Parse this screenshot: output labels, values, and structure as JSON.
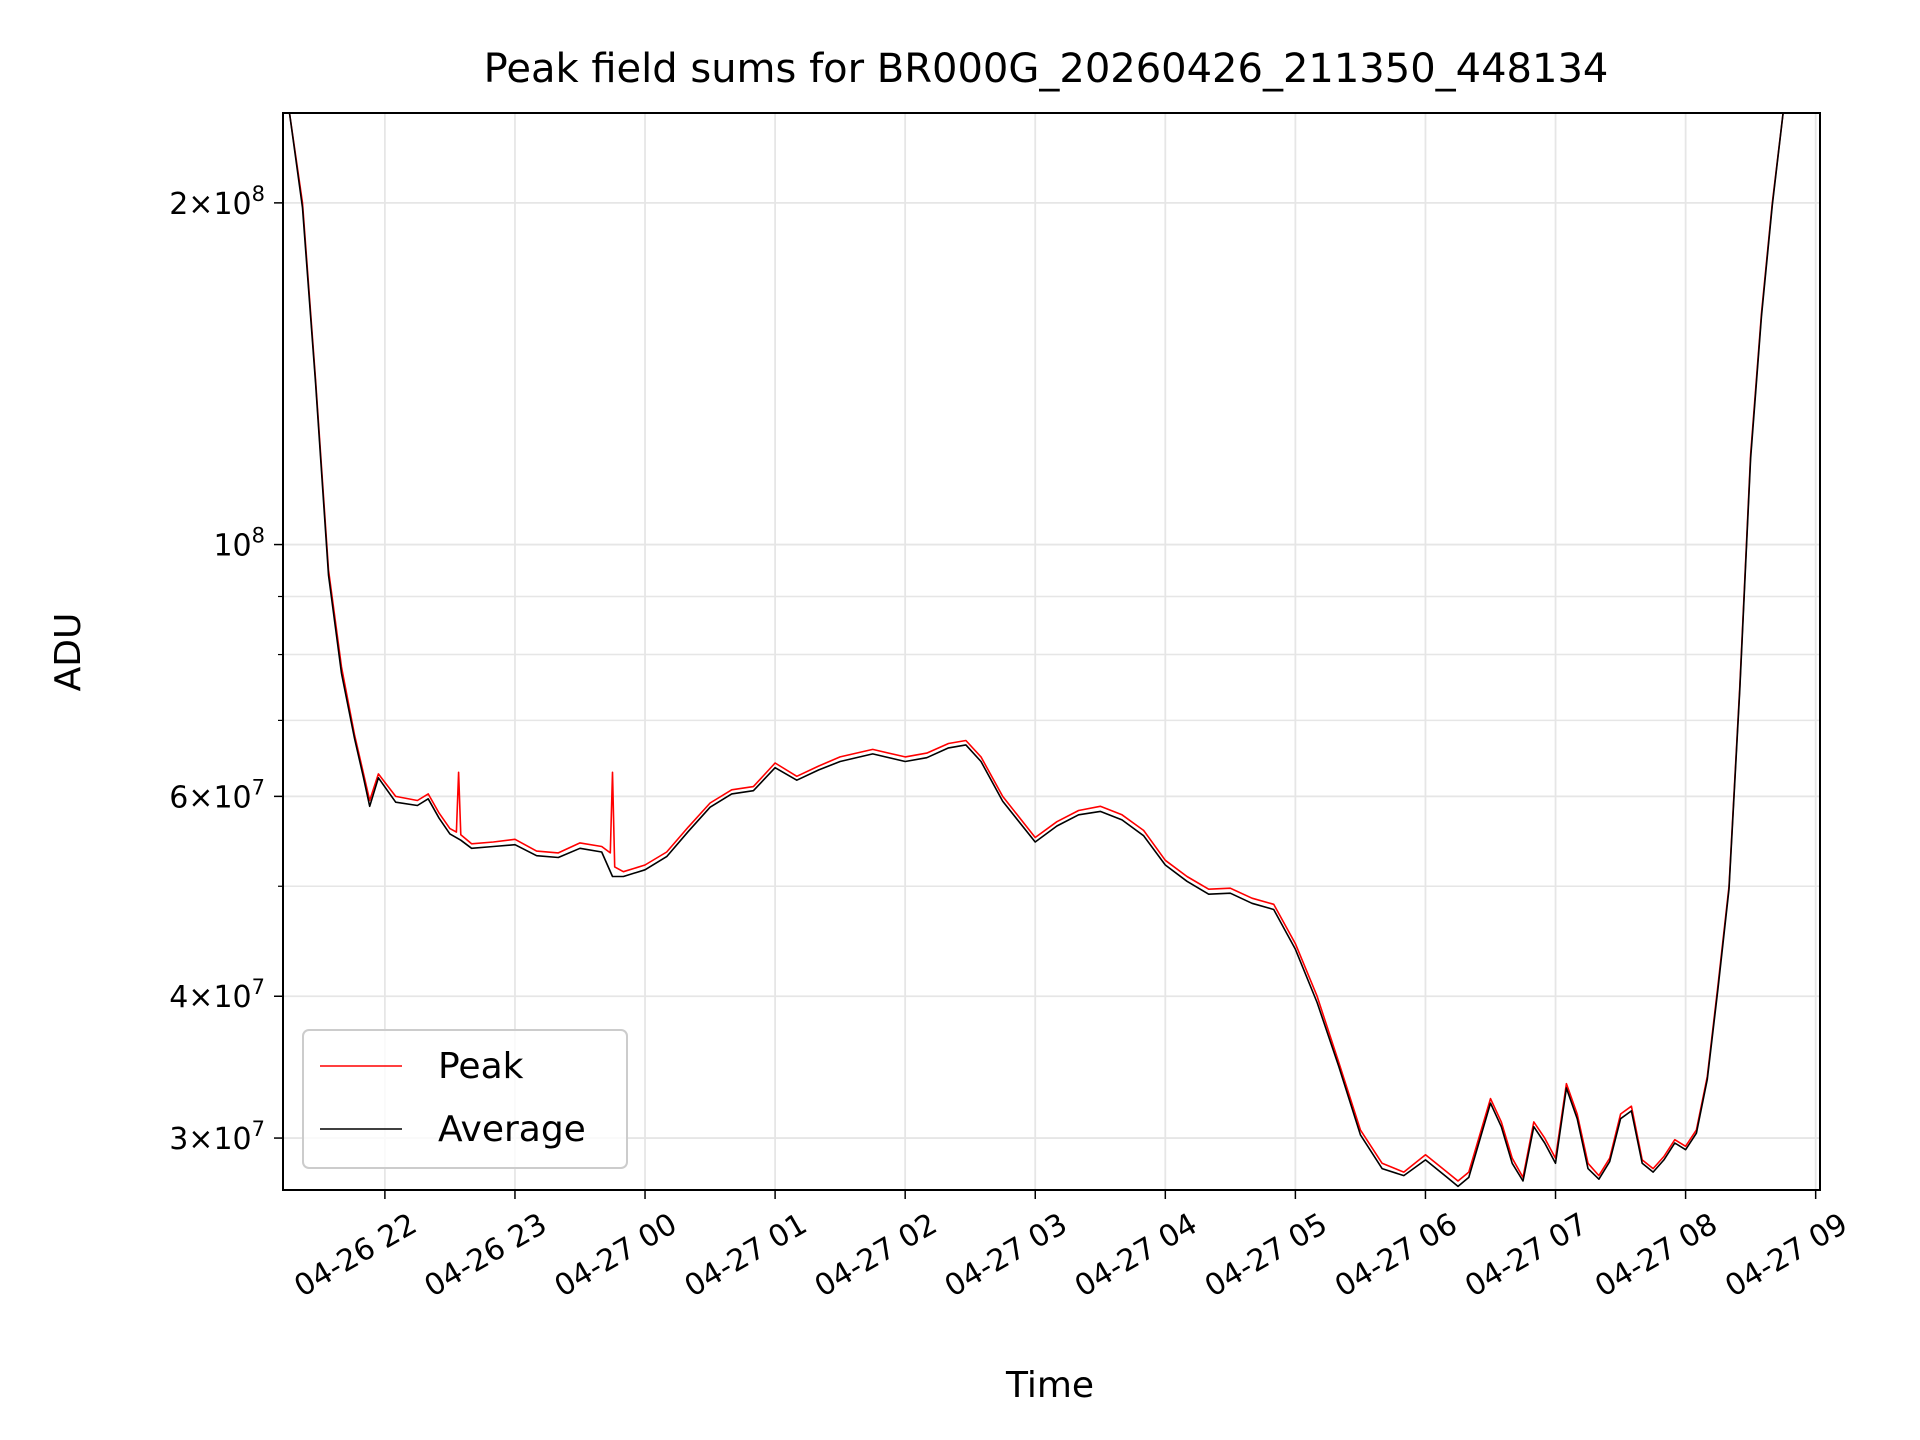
{
  "chart_data": {
    "type": "line",
    "title": "Peak field sums for BR000G_20260426_211350_448134",
    "xlabel": "Time",
    "ylabel": "ADU",
    "y_scale": "log",
    "grid": true,
    "legend_placement": "lower-left",
    "xlim": [
      "2026-04-26 21:13",
      "2026-04-27 09:02"
    ],
    "ylim": [
      27000000,
      240000000
    ],
    "x_ticks": [
      "04-26 22",
      "04-26 23",
      "04-27 00",
      "04-27 01",
      "04-27 02",
      "04-27 03",
      "04-27 04",
      "04-27 05",
      "04-27 06",
      "04-27 07",
      "04-27 08",
      "04-27 09"
    ],
    "y_ticks": [
      {
        "value": 30000000,
        "base": "3",
        "exp": "7"
      },
      {
        "value": 40000000,
        "base": "4",
        "exp": "7"
      },
      {
        "value": 60000000,
        "base": "6",
        "exp": "7"
      },
      {
        "value": 100000000,
        "base": "",
        "exp": "8"
      },
      {
        "value": 200000000,
        "base": "2",
        "exp": "8"
      }
    ],
    "series": [
      {
        "name": "Peak",
        "color": "#ff0000",
        "x": [
          "2026-04-26 21:13",
          "2026-04-26 21:16",
          "2026-04-26 21:22",
          "2026-04-26 21:28",
          "2026-04-26 21:34",
          "2026-04-26 21:40",
          "2026-04-26 21:46",
          "2026-04-26 21:50",
          "2026-04-26 21:53",
          "2026-04-26 21:57",
          "2026-04-26 22:05",
          "2026-04-26 22:15",
          "2026-04-26 22:20",
          "2026-04-26 22:25",
          "2026-04-26 22:30",
          "2026-04-26 22:33",
          "2026-04-26 22:34",
          "2026-04-26 22:35",
          "2026-04-26 22:40",
          "2026-04-26 22:50",
          "2026-04-26 23:00",
          "2026-04-26 23:10",
          "2026-04-26 23:20",
          "2026-04-26 23:30",
          "2026-04-26 23:40",
          "2026-04-26 23:44",
          "2026-04-26 23:45",
          "2026-04-26 23:46",
          "2026-04-26 23:50",
          "2026-04-27 00:00",
          "2026-04-27 00:10",
          "2026-04-27 00:20",
          "2026-04-27 00:30",
          "2026-04-27 00:40",
          "2026-04-27 00:50",
          "2026-04-27 01:00",
          "2026-04-27 01:10",
          "2026-04-27 01:20",
          "2026-04-27 01:30",
          "2026-04-27 01:45",
          "2026-04-27 02:00",
          "2026-04-27 02:10",
          "2026-04-27 02:20",
          "2026-04-27 02:28",
          "2026-04-27 02:35",
          "2026-04-27 02:45",
          "2026-04-27 03:00",
          "2026-04-27 03:10",
          "2026-04-27 03:20",
          "2026-04-27 03:30",
          "2026-04-27 03:40",
          "2026-04-27 03:50",
          "2026-04-27 04:00",
          "2026-04-27 04:10",
          "2026-04-27 04:20",
          "2026-04-27 04:30",
          "2026-04-27 04:40",
          "2026-04-27 04:50",
          "2026-04-27 05:00",
          "2026-04-27 05:10",
          "2026-04-27 05:20",
          "2026-04-27 05:30",
          "2026-04-27 05:40",
          "2026-04-27 05:50",
          "2026-04-27 06:00",
          "2026-04-27 06:10",
          "2026-04-27 06:15",
          "2026-04-27 06:20",
          "2026-04-27 06:30",
          "2026-04-27 06:35",
          "2026-04-27 06:40",
          "2026-04-27 06:45",
          "2026-04-27 06:50",
          "2026-04-27 06:55",
          "2026-04-27 07:00",
          "2026-04-27 07:05",
          "2026-04-27 07:10",
          "2026-04-27 07:15",
          "2026-04-27 07:20",
          "2026-04-27 07:25",
          "2026-04-27 07:30",
          "2026-04-27 07:35",
          "2026-04-27 07:40",
          "2026-04-27 07:45",
          "2026-04-27 07:50",
          "2026-04-27 07:55",
          "2026-04-27 08:00",
          "2026-04-27 08:05",
          "2026-04-27 08:10",
          "2026-04-27 08:15",
          "2026-04-27 08:20",
          "2026-04-27 08:25",
          "2026-04-27 08:30",
          "2026-04-27 08:35",
          "2026-04-27 08:40",
          "2026-04-27 08:45",
          "2026-04-27 08:50",
          "2026-04-27 08:55"
        ],
        "y": [
          240000000,
          240000000,
          200000000,
          140000000,
          95000000,
          78000000,
          68000000,
          63000000,
          59500000,
          62800000,
          60000000,
          59500000,
          60300000,
          58000000,
          56200000,
          55800000,
          63000000,
          55500000,
          54500000,
          54700000,
          55000000,
          53700000,
          53500000,
          54600000,
          54200000,
          53500000,
          63000000,
          52000000,
          51500000,
          52200000,
          53600000,
          56400000,
          59200000,
          60800000,
          61200000,
          64200000,
          62500000,
          63800000,
          65000000,
          66000000,
          65000000,
          65500000,
          66800000,
          67200000,
          65000000,
          60000000,
          55200000,
          57000000,
          58300000,
          58800000,
          57800000,
          56000000,
          52700000,
          51000000,
          49700000,
          49800000,
          48800000,
          48200000,
          44500000,
          40000000,
          35000000,
          30500000,
          28500000,
          28000000,
          29000000,
          28000000,
          27500000,
          28000000,
          32500000,
          31000000,
          28800000,
          27700000,
          31000000,
          30000000,
          28800000,
          33500000,
          31500000,
          28500000,
          27800000,
          28800000,
          31500000,
          32000000,
          28700000,
          28200000,
          28900000,
          29900000,
          29500000,
          30500000,
          34000000,
          41000000,
          50000000,
          75000000,
          120000000,
          160000000,
          200000000,
          240000000,
          240000000,
          240000000
        ]
      },
      {
        "name": "Average",
        "color": "#000000",
        "x": [
          "2026-04-26 21:13",
          "2026-04-26 21:16",
          "2026-04-26 21:22",
          "2026-04-26 21:28",
          "2026-04-26 21:34",
          "2026-04-26 21:40",
          "2026-04-26 21:46",
          "2026-04-26 21:50",
          "2026-04-26 21:53",
          "2026-04-26 21:57",
          "2026-04-26 22:05",
          "2026-04-26 22:15",
          "2026-04-26 22:20",
          "2026-04-26 22:25",
          "2026-04-26 22:30",
          "2026-04-26 22:35",
          "2026-04-26 22:40",
          "2026-04-26 22:50",
          "2026-04-26 23:00",
          "2026-04-26 23:10",
          "2026-04-26 23:20",
          "2026-04-26 23:30",
          "2026-04-26 23:40",
          "2026-04-26 23:45",
          "2026-04-26 23:50",
          "2026-04-27 00:00",
          "2026-04-27 00:10",
          "2026-04-27 00:20",
          "2026-04-27 00:30",
          "2026-04-27 00:40",
          "2026-04-27 00:50",
          "2026-04-27 01:00",
          "2026-04-27 01:10",
          "2026-04-27 01:20",
          "2026-04-27 01:30",
          "2026-04-27 01:45",
          "2026-04-27 02:00",
          "2026-04-27 02:10",
          "2026-04-27 02:20",
          "2026-04-27 02:28",
          "2026-04-27 02:35",
          "2026-04-27 02:45",
          "2026-04-27 03:00",
          "2026-04-27 03:10",
          "2026-04-27 03:20",
          "2026-04-27 03:30",
          "2026-04-27 03:40",
          "2026-04-27 03:50",
          "2026-04-27 04:00",
          "2026-04-27 04:10",
          "2026-04-27 04:20",
          "2026-04-27 04:30",
          "2026-04-27 04:40",
          "2026-04-27 04:50",
          "2026-04-27 05:00",
          "2026-04-27 05:10",
          "2026-04-27 05:20",
          "2026-04-27 05:30",
          "2026-04-27 05:40",
          "2026-04-27 05:50",
          "2026-04-27 06:00",
          "2026-04-27 06:10",
          "2026-04-27 06:15",
          "2026-04-27 06:20",
          "2026-04-27 06:30",
          "2026-04-27 06:35",
          "2026-04-27 06:40",
          "2026-04-27 06:45",
          "2026-04-27 06:50",
          "2026-04-27 06:55",
          "2026-04-27 07:00",
          "2026-04-27 07:05",
          "2026-04-27 07:10",
          "2026-04-27 07:15",
          "2026-04-27 07:20",
          "2026-04-27 07:25",
          "2026-04-27 07:30",
          "2026-04-27 07:35",
          "2026-04-27 07:40",
          "2026-04-27 07:45",
          "2026-04-27 07:50",
          "2026-04-27 07:55",
          "2026-04-27 08:00",
          "2026-04-27 08:05",
          "2026-04-27 08:10",
          "2026-04-27 08:15",
          "2026-04-27 08:20",
          "2026-04-27 08:25",
          "2026-04-27 08:30",
          "2026-04-27 08:35",
          "2026-04-27 08:40",
          "2026-04-27 08:45",
          "2026-04-27 08:50",
          "2026-04-27 08:55"
        ],
        "y": [
          240000000,
          240000000,
          198000000,
          139000000,
          94000000,
          77000000,
          67500000,
          62500000,
          58800000,
          62300000,
          59300000,
          58900000,
          59700000,
          57400000,
          55600000,
          54900000,
          54000000,
          54200000,
          54400000,
          53200000,
          53000000,
          54000000,
          53600000,
          51000000,
          51000000,
          51700000,
          53100000,
          55900000,
          58700000,
          60300000,
          60700000,
          63600000,
          62000000,
          63300000,
          64400000,
          65400000,
          64400000,
          64900000,
          66200000,
          66600000,
          64400000,
          59400000,
          54700000,
          56500000,
          57800000,
          58200000,
          57200000,
          55400000,
          52200000,
          50500000,
          49200000,
          49300000,
          48300000,
          47700000,
          44000000,
          39500000,
          34700000,
          30200000,
          28200000,
          27800000,
          28700000,
          27700000,
          27200000,
          27700000,
          32200000,
          30700000,
          28500000,
          27500000,
          30700000,
          29700000,
          28500000,
          33200000,
          31200000,
          28200000,
          27600000,
          28600000,
          31200000,
          31700000,
          28500000,
          28000000,
          28700000,
          29700000,
          29300000,
          30300000,
          33800000,
          40700000,
          49700000,
          74500000,
          119000000,
          159000000,
          199000000,
          240000000,
          240000000,
          240000000
        ]
      }
    ]
  }
}
